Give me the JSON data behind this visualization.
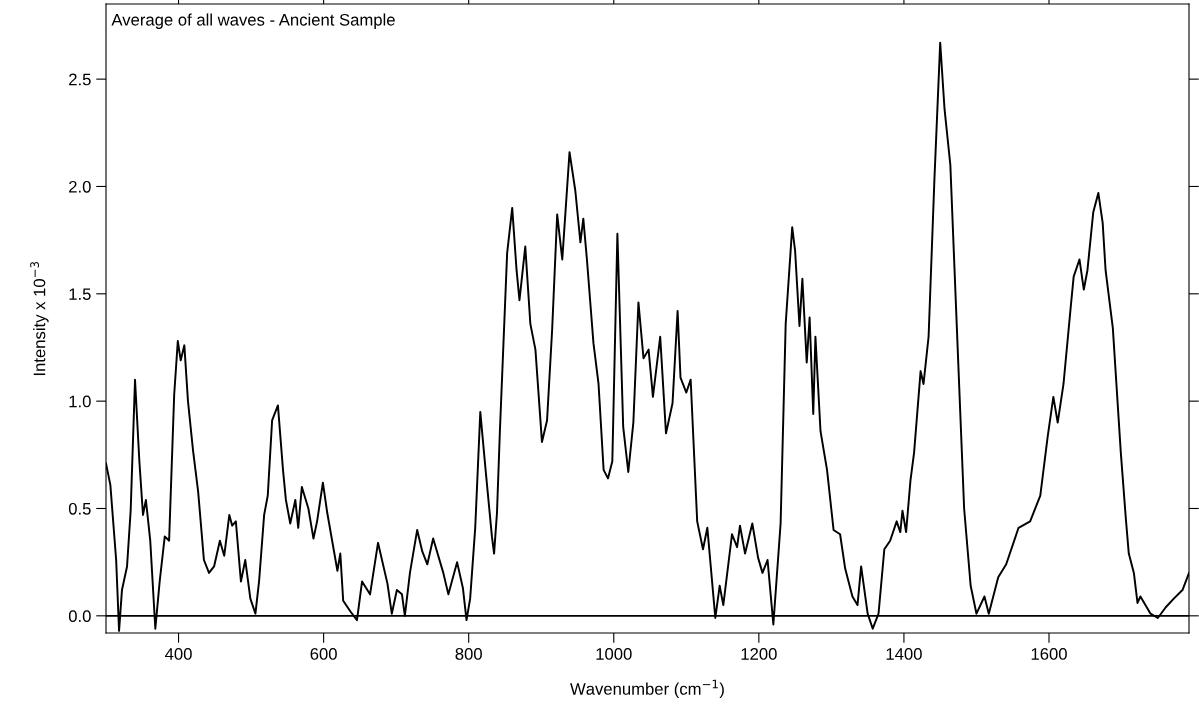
{
  "chart_data": {
    "type": "line",
    "title": "Average of all waves - Ancient Sample",
    "xlabel": "Wavenumber (cm$^{−1}$)",
    "ylabel": "Intensity x 10$^{−3}$",
    "xlim": [
      300,
      1793
    ],
    "xticks": [
      400,
      600,
      800,
      1000,
      1200,
      1400,
      1600
    ],
    "ylim": [
      -0.08,
      2.85
    ],
    "yticks": [
      {
        "value": 0,
        "label": "0.0"
      },
      {
        "value": 0.5,
        "label": "0.5"
      },
      {
        "value": 1,
        "label": "1.0"
      },
      {
        "value": 1.5,
        "label": "1.5"
      },
      {
        "value": 2,
        "label": "2.0"
      },
      {
        "value": 2.5,
        "label": "2.5"
      }
    ],
    "grid": false,
    "marker": "none",
    "line_style": "solid",
    "ref_lines": [
      {
        "axis": "y",
        "value": 0,
        "color": "#000000"
      }
    ],
    "series": [
      {
        "color": "#000000",
        "x": [
          300,
          306,
          314,
          318,
          322,
          329,
          334,
          340,
          346,
          351,
          355,
          361,
          368,
          374,
          381,
          387,
          394,
          399,
          403,
          408,
          413,
          420,
          427,
          435,
          442,
          449,
          457,
          463,
          470,
          474,
          479,
          486,
          492,
          499,
          506,
          511,
          518,
          523,
          529,
          537,
          544,
          548,
          554,
          561,
          565,
          570,
          579,
          586,
          591,
          599,
          605,
          619,
          623,
          627,
          637,
          646,
          653,
          664,
          675,
          688,
          694,
          701,
          708,
          712,
          719,
          729,
          736,
          743,
          751,
          765,
          772,
          784,
          792,
          797,
          802,
          809,
          816,
          823,
          832,
          835,
          839,
          843,
          853,
          860,
          866,
          870,
          878,
          885,
          892,
          901,
          908,
          915,
          922,
          929,
          939,
          947,
          954,
          958,
          963,
          972,
          979,
          986,
          992,
          998,
          1005,
          1013,
          1020,
          1027,
          1034,
          1041,
          1048,
          1054,
          1064,
          1072,
          1081,
          1088,
          1092,
          1100,
          1106,
          1115,
          1123,
          1129,
          1140,
          1146,
          1151,
          1163,
          1170,
          1174,
          1181,
          1191,
          1199,
          1205,
          1212,
          1220,
          1230,
          1237,
          1246,
          1250,
          1256,
          1260,
          1266,
          1270,
          1275,
          1278,
          1285,
          1294,
          1303,
          1312,
          1319,
          1329,
          1336,
          1341,
          1350,
          1357,
          1365,
          1373,
          1381,
          1390,
          1395,
          1398,
          1403,
          1409,
          1414,
          1423,
          1427,
          1434,
          1442,
          1450,
          1456,
          1464,
          1475,
          1483,
          1492,
          1500,
          1511,
          1517,
          1530,
          1541,
          1558,
          1574,
          1588,
          1598,
          1606,
          1612,
          1620,
          1630,
          1634,
          1642,
          1648,
          1653,
          1661,
          1668,
          1674,
          1678,
          1688,
          1699,
          1706,
          1710,
          1717,
          1722,
          1726,
          1740,
          1750,
          1761,
          1772,
          1784,
          1793
        ],
        "values": [
          0.71,
          0.61,
          0.26,
          -0.07,
          0.12,
          0.23,
          0.49,
          1.1,
          0.72,
          0.47,
          0.54,
          0.35,
          -0.06,
          0.16,
          0.37,
          0.35,
          1.03,
          1.28,
          1.19,
          1.26,
          1.0,
          0.77,
          0.58,
          0.26,
          0.2,
          0.23,
          0.35,
          0.28,
          0.47,
          0.42,
          0.44,
          0.16,
          0.26,
          0.08,
          0.01,
          0.16,
          0.47,
          0.56,
          0.91,
          0.98,
          0.68,
          0.54,
          0.43,
          0.54,
          0.41,
          0.6,
          0.5,
          0.36,
          0.44,
          0.62,
          0.48,
          0.21,
          0.29,
          0.07,
          0.02,
          -0.02,
          0.16,
          0.1,
          0.34,
          0.15,
          0.01,
          0.12,
          0.1,
          0.0,
          0.2,
          0.4,
          0.3,
          0.24,
          0.36,
          0.2,
          0.1,
          0.25,
          0.13,
          -0.02,
          0.08,
          0.41,
          0.95,
          0.69,
          0.37,
          0.29,
          0.48,
          0.86,
          1.69,
          1.9,
          1.61,
          1.47,
          1.72,
          1.36,
          1.24,
          0.81,
          0.91,
          1.33,
          1.87,
          1.66,
          2.16,
          1.98,
          1.74,
          1.85,
          1.66,
          1.27,
          1.08,
          0.68,
          0.64,
          0.72,
          1.78,
          0.88,
          0.67,
          0.9,
          1.46,
          1.2,
          1.24,
          1.02,
          1.3,
          0.85,
          0.99,
          1.42,
          1.11,
          1.04,
          1.1,
          0.44,
          0.31,
          0.41,
          -0.01,
          0.14,
          0.05,
          0.38,
          0.32,
          0.42,
          0.29,
          0.43,
          0.27,
          0.2,
          0.26,
          -0.04,
          0.43,
          1.36,
          1.81,
          1.7,
          1.35,
          1.57,
          1.18,
          1.39,
          0.94,
          1.3,
          0.86,
          0.68,
          0.4,
          0.38,
          0.22,
          0.09,
          0.05,
          0.23,
          0.01,
          -0.06,
          0.01,
          0.31,
          0.35,
          0.44,
          0.39,
          0.49,
          0.39,
          0.63,
          0.76,
          1.14,
          1.08,
          1.3,
          2.03,
          2.67,
          2.36,
          2.1,
          1.17,
          0.5,
          0.14,
          0.01,
          0.09,
          0.01,
          0.18,
          0.24,
          0.41,
          0.44,
          0.56,
          0.83,
          1.02,
          0.9,
          1.08,
          1.44,
          1.58,
          1.66,
          1.52,
          1.61,
          1.88,
          1.97,
          1.83,
          1.61,
          1.34,
          0.76,
          0.45,
          0.29,
          0.2,
          0.06,
          0.09,
          0.01,
          -0.01,
          0.04,
          0.08,
          0.12,
          0.2
        ]
      }
    ]
  }
}
